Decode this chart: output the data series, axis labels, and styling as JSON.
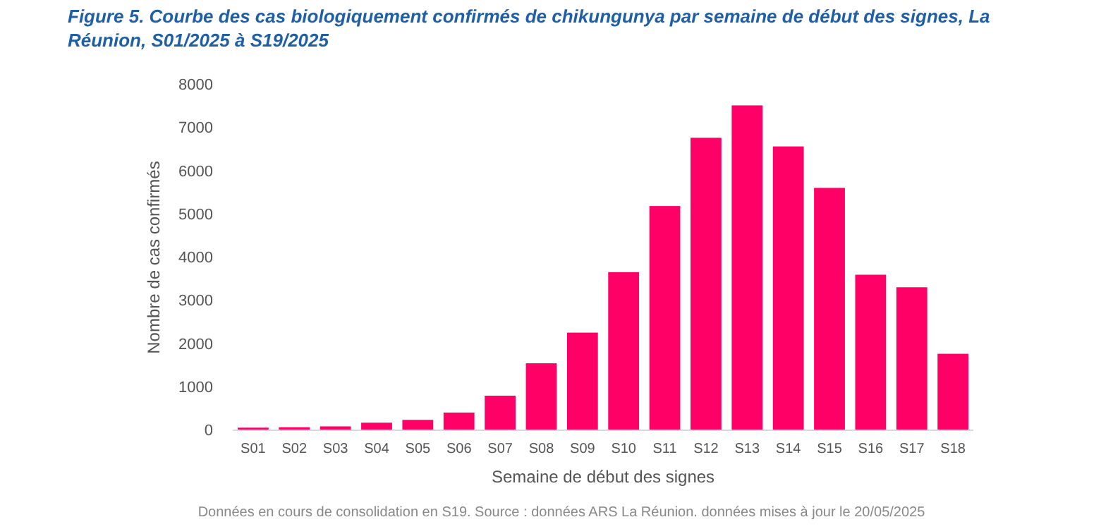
{
  "chart_data": {
    "type": "bar",
    "title": "Figure 5. Courbe des cas biologiquement confirmés de chikungunya par semaine de début des signes, La Réunion, S01/2025 à S19/2025",
    "xlabel": "Semaine de début des signes",
    "ylabel": "Nombre de cas confirmés",
    "categories": [
      "S01",
      "S02",
      "S03",
      "S04",
      "S05",
      "S06",
      "S07",
      "S08",
      "S09",
      "S10",
      "S11",
      "S12",
      "S13",
      "S14",
      "S15",
      "S16",
      "S17",
      "S18"
    ],
    "values": [
      60,
      70,
      90,
      175,
      240,
      410,
      800,
      1550,
      2260,
      3660,
      5190,
      6770,
      7520,
      6570,
      5610,
      3600,
      3310,
      1770
    ],
    "color": "#ff0066",
    "ylim": [
      0,
      8000
    ],
    "yticks": [
      0,
      1000,
      2000,
      3000,
      4000,
      5000,
      6000,
      7000,
      8000
    ],
    "grid": false,
    "annotations": [
      "Données en cours de consolidation en S19. Source : données ARS La Réunion. données mises à jour le 20/05/2025"
    ]
  }
}
